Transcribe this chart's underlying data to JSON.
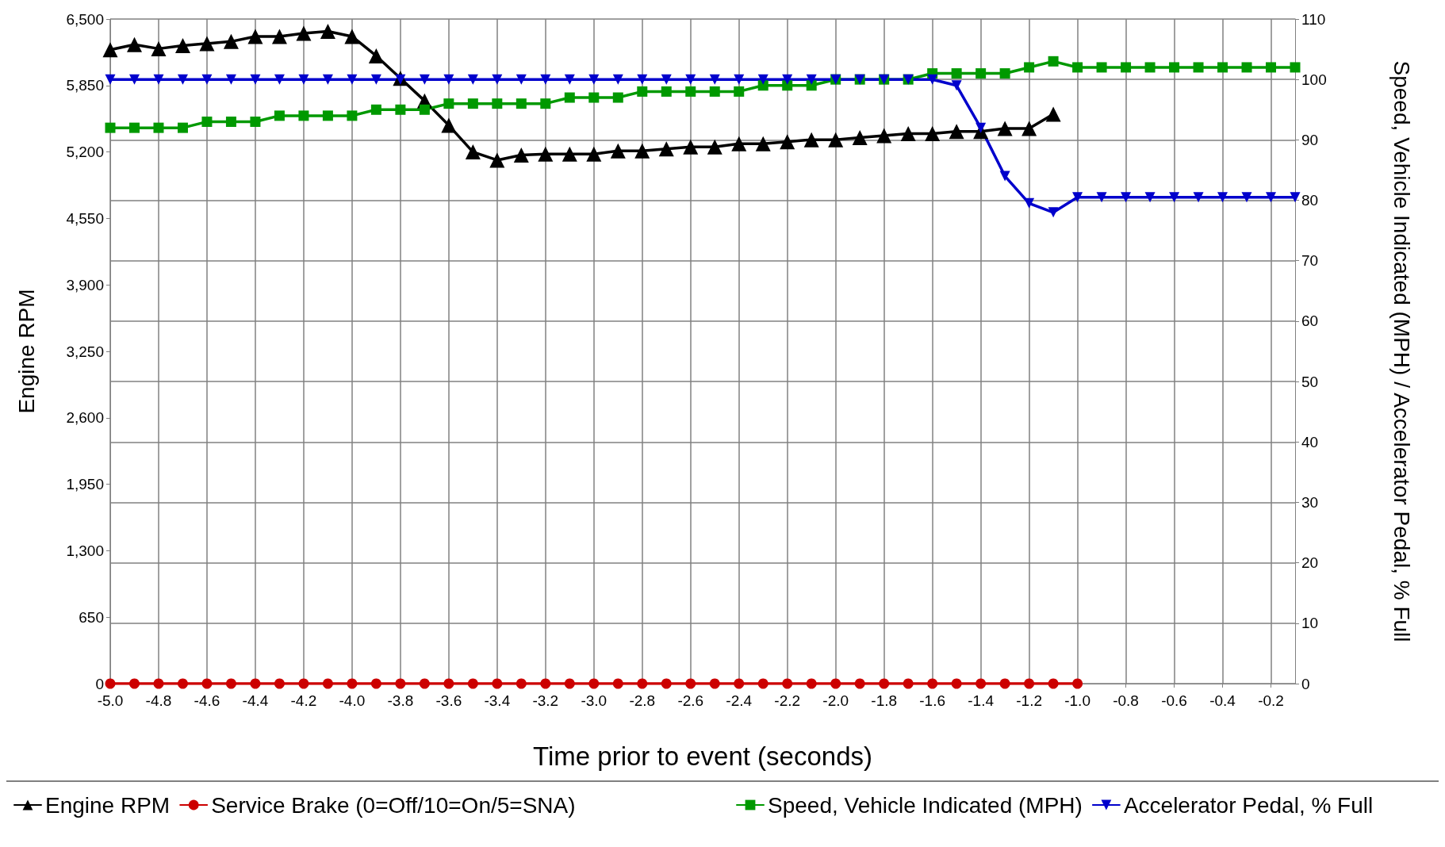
{
  "chart_data": {
    "type": "line",
    "xlabel": "Time prior to event (seconds)",
    "ylabel": "Engine RPM",
    "y2label": "Speed, Vehicle Indicated (MPH) / Accelerator Pedal, % Full",
    "x": [
      -5.0,
      -4.9,
      -4.8,
      -4.7,
      -4.6,
      -4.5,
      -4.4,
      -4.3,
      -4.2,
      -4.1,
      -4.0,
      -3.9,
      -3.8,
      -3.7,
      -3.6,
      -3.5,
      -3.4,
      -3.3,
      -3.2,
      -3.1,
      -3.0,
      -2.9,
      -2.8,
      -2.7,
      -2.6,
      -2.5,
      -2.4,
      -2.3,
      -2.2,
      -2.1,
      -2.0,
      -1.9,
      -1.8,
      -1.7,
      -1.6,
      -1.5,
      -1.4,
      -1.3,
      -1.2,
      -1.1,
      -1.0,
      -0.9,
      -0.8,
      -0.7,
      -0.6,
      -0.5,
      -0.4,
      -0.3,
      -0.2,
      -0.1
    ],
    "series": [
      {
        "name": "Engine RPM",
        "color": "#000000",
        "marker": "triangle",
        "values": [
          6200,
          6250,
          6210,
          6240,
          6260,
          6280,
          6330,
          6330,
          6360,
          6380,
          6330,
          6140,
          5920,
          5700,
          5460,
          5200,
          5120,
          5170,
          5180,
          5180,
          5180,
          5210,
          5210,
          5230,
          5250,
          5250,
          5280,
          5280,
          5300,
          5320,
          5320,
          5340,
          5360,
          5380,
          5380,
          5400,
          5400,
          5430,
          5430,
          5570,
          null,
          null,
          null,
          null,
          null,
          null,
          null,
          null,
          null,
          null
        ]
      },
      {
        "name": "Service Brake (0=Off/10=On/5=SNA)",
        "color": "#cc0000",
        "marker": "circle",
        "axis": "y2",
        "values": [
          0,
          0,
          0,
          0,
          0,
          0,
          0,
          0,
          0,
          0,
          0,
          0,
          0,
          0,
          0,
          0,
          0,
          0,
          0,
          0,
          0,
          0,
          0,
          0,
          0,
          0,
          0,
          0,
          0,
          0,
          0,
          0,
          0,
          0,
          0,
          0,
          0,
          0,
          0,
          0,
          0,
          null,
          null,
          null,
          null,
          null,
          null,
          null,
          null,
          null
        ]
      },
      {
        "name": "Speed, Vehicle Indicated (MPH)",
        "color": "#009900",
        "marker": "square",
        "axis": "y2",
        "values": [
          92,
          92,
          92,
          92,
          93,
          93,
          93,
          94,
          94,
          94,
          94,
          95,
          95,
          95,
          96,
          96,
          96,
          96,
          96,
          97,
          97,
          97,
          98,
          98,
          98,
          98,
          98,
          99,
          99,
          99,
          100,
          100,
          100,
          100,
          101,
          101,
          101,
          101,
          102,
          103,
          102,
          102,
          102,
          102,
          102,
          102,
          102,
          102,
          102,
          102
        ]
      },
      {
        "name": "Accelerator Pedal, % Full",
        "color": "#0000cc",
        "marker": "triangle-down",
        "axis": "y2",
        "values": [
          100,
          100,
          100,
          100,
          100,
          100,
          100,
          100,
          100,
          100,
          100,
          100,
          100,
          100,
          100,
          100,
          100,
          100,
          100,
          100,
          100,
          100,
          100,
          100,
          100,
          100,
          100,
          100,
          100,
          100,
          100,
          100,
          100,
          100,
          100,
          99,
          92,
          84,
          79.5,
          78,
          80.5,
          80.5,
          80.5,
          80.5,
          80.5,
          80.5,
          80.5,
          80.5,
          80.5,
          80.5
        ]
      }
    ],
    "xlim": [
      -5.0,
      -0.1
    ],
    "xticks": [
      {
        "value": -5.0,
        "label": "-5.0"
      },
      {
        "value": -4.8,
        "label": "-4.8"
      },
      {
        "value": -4.6,
        "label": "-4.6"
      },
      {
        "value": -4.4,
        "label": "-4.4"
      },
      {
        "value": -4.2,
        "label": "-4.2"
      },
      {
        "value": -4.0,
        "label": "-4.0"
      },
      {
        "value": -3.8,
        "label": "-3.8"
      },
      {
        "value": -3.6,
        "label": "-3.6"
      },
      {
        "value": -3.4,
        "label": "-3.4"
      },
      {
        "value": -3.2,
        "label": "-3.2"
      },
      {
        "value": -3.0,
        "label": "-3.0"
      },
      {
        "value": -2.8,
        "label": "-2.8"
      },
      {
        "value": -2.6,
        "label": "-2.6"
      },
      {
        "value": -2.4,
        "label": "-2.4"
      },
      {
        "value": -2.2,
        "label": "-2.2"
      },
      {
        "value": -2.0,
        "label": "-2.0"
      },
      {
        "value": -1.8,
        "label": "-1.8"
      },
      {
        "value": -1.6,
        "label": "-1.6"
      },
      {
        "value": -1.4,
        "label": "-1.4"
      },
      {
        "value": -1.2,
        "label": "-1.2"
      },
      {
        "value": -1.0,
        "label": "-1.0"
      },
      {
        "value": -0.8,
        "label": "-0.8"
      },
      {
        "value": -0.6,
        "label": "-0.6"
      },
      {
        "value": -0.4,
        "label": "-0.4"
      },
      {
        "value": -0.2,
        "label": "-0.2"
      }
    ],
    "ylim": [
      0,
      6500
    ],
    "yticks": [
      0,
      650,
      {
        "value": 1300,
        "label": "1,300"
      },
      {
        "value": 1950,
        "label": "1,950"
      },
      {
        "value": 2600,
        "label": "2,600"
      },
      {
        "value": 3250,
        "label": "3,250"
      },
      {
        "value": 3900,
        "label": "3,900"
      },
      {
        "value": 4550,
        "label": "4,550"
      },
      {
        "value": 5200,
        "label": "5,200"
      },
      {
        "value": 5850,
        "label": "5,850"
      },
      {
        "value": 6500,
        "label": "6,500"
      }
    ],
    "y2lim": [
      0,
      110
    ],
    "y2ticks": [
      0,
      10,
      20,
      30,
      40,
      50,
      60,
      70,
      80,
      90,
      100,
      110
    ],
    "grid": true,
    "legend": "bottom",
    "line_style": "solid"
  }
}
